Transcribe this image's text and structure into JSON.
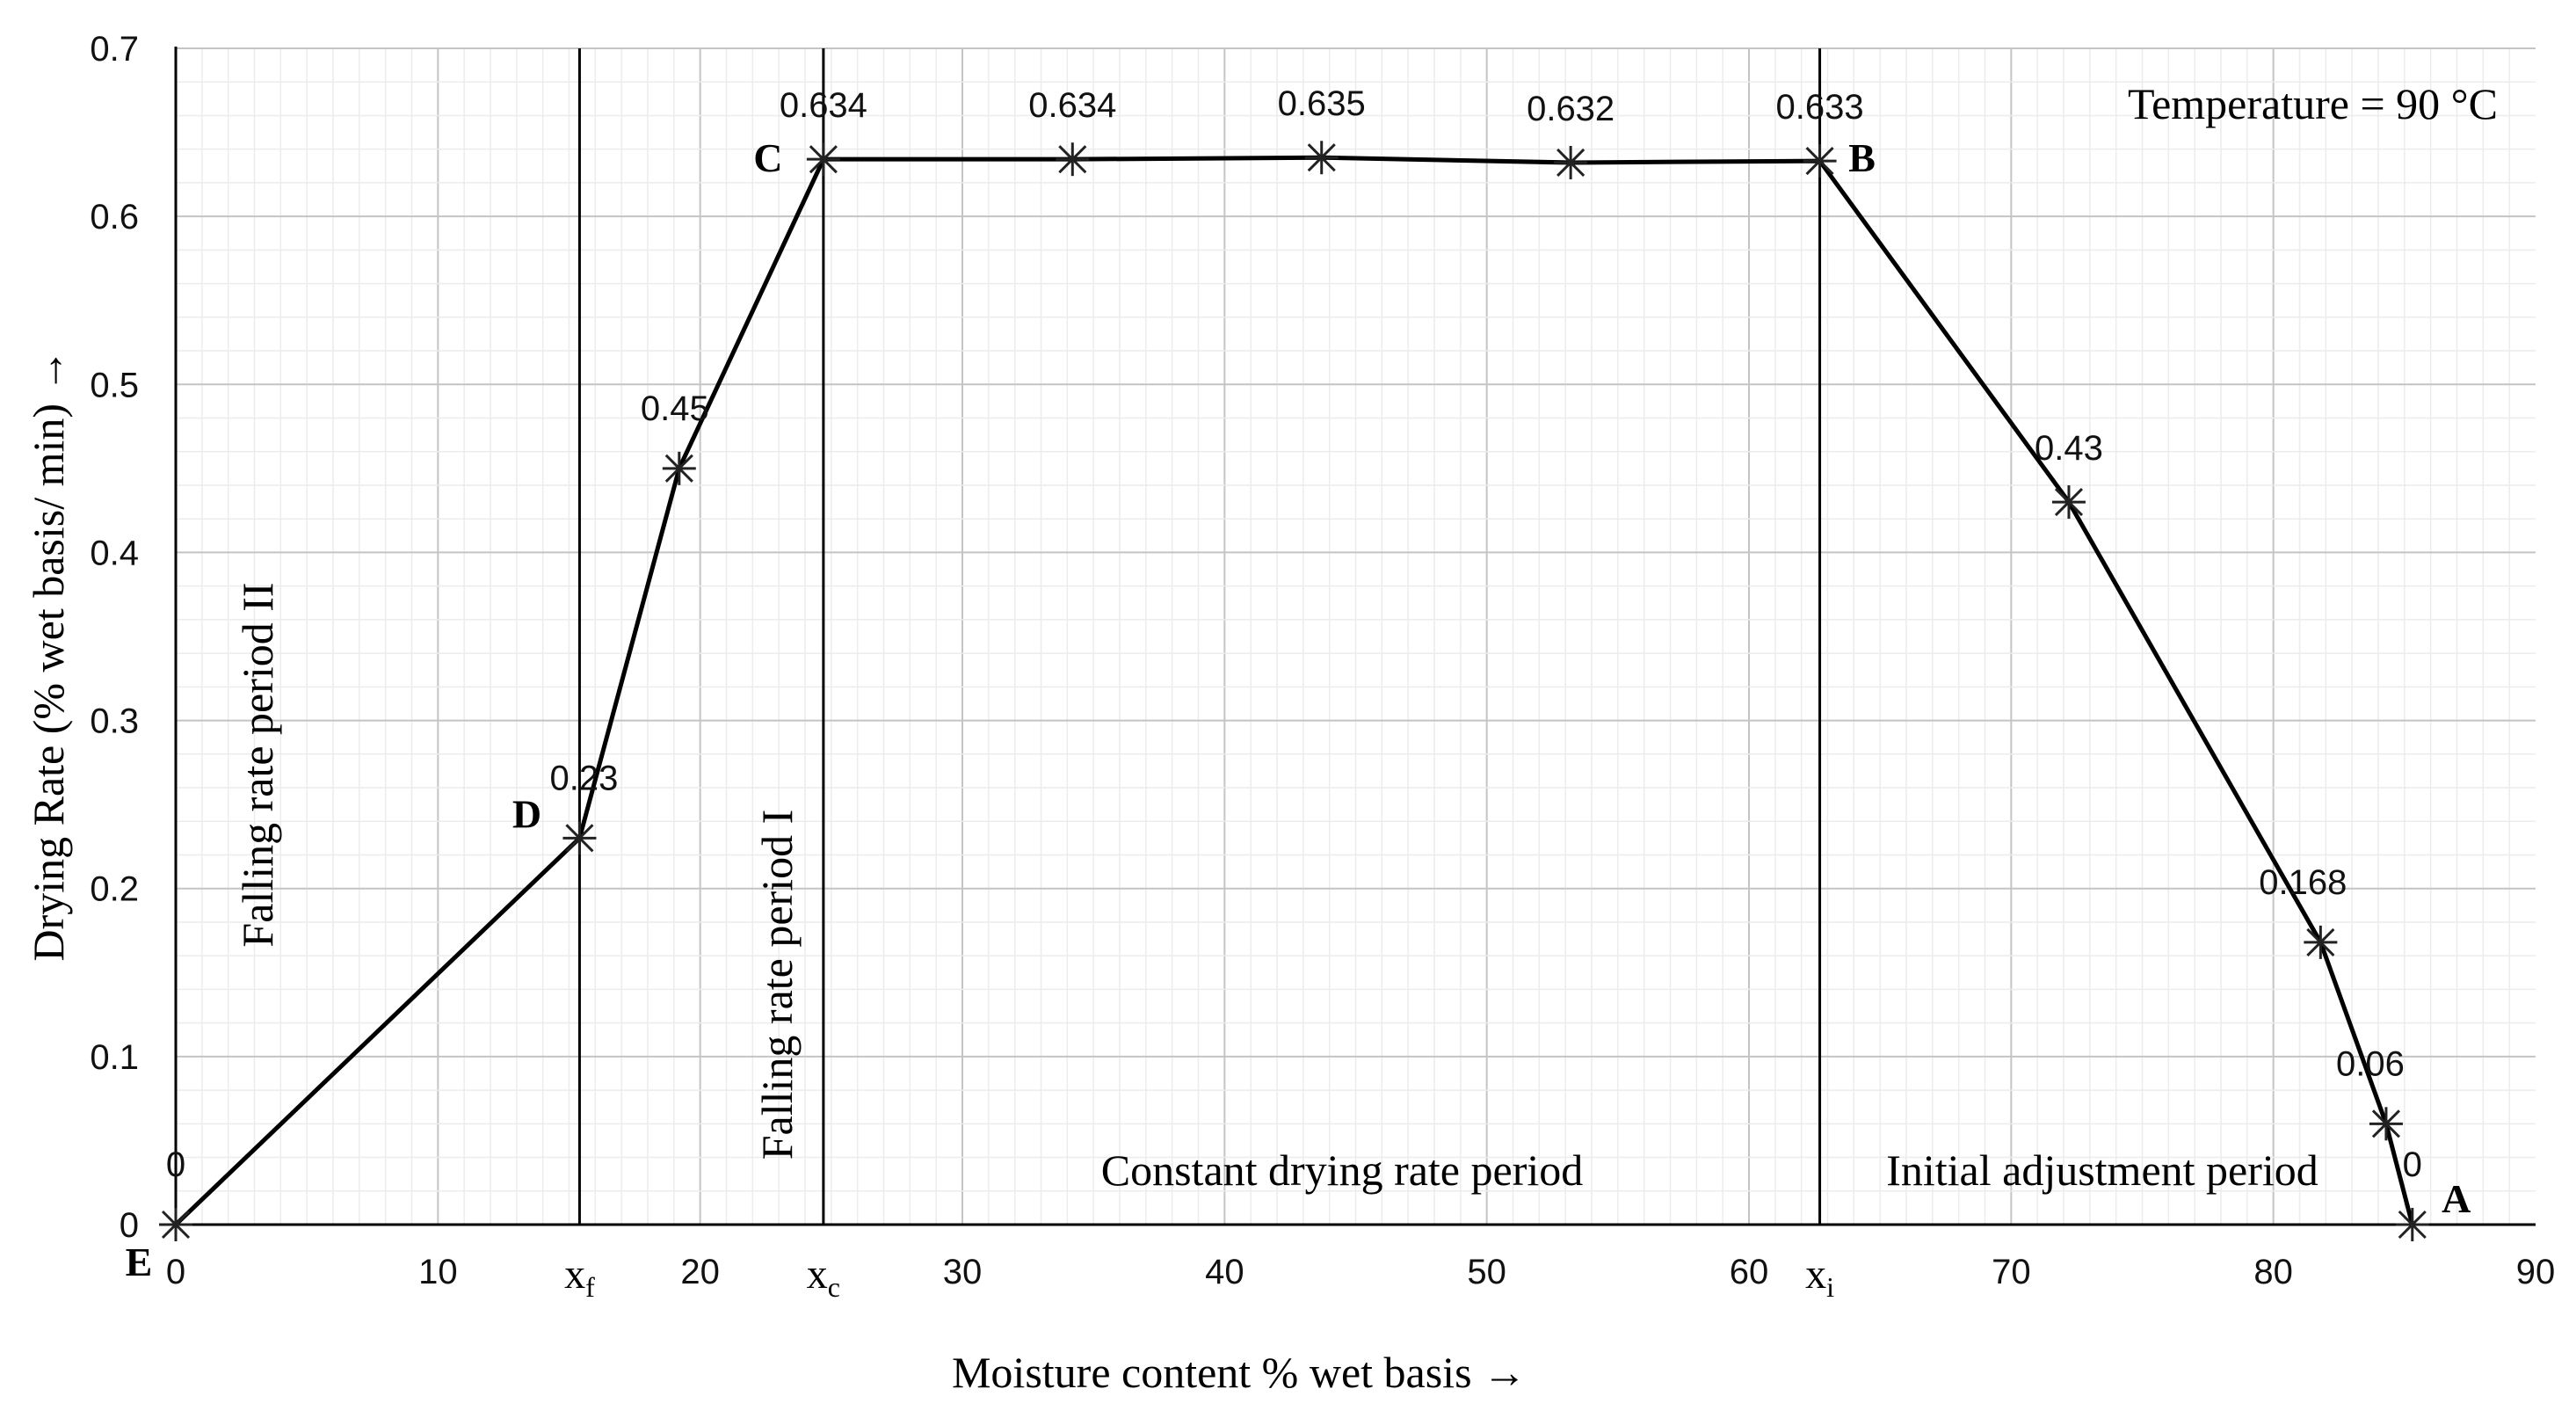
{
  "chart_data": {
    "type": "line",
    "xlabel": "Moisture content % wet basis →",
    "ylabel": "Drying Rate (% wet basis/ min) →",
    "xlim": [
      0,
      90
    ],
    "ylim": [
      0,
      0.7
    ],
    "x_ticks": [
      "0",
      "10",
      "20",
      "30",
      "40",
      "50",
      "60",
      "70",
      "80",
      "90"
    ],
    "y_ticks": [
      "0",
      "0.1",
      "0.2",
      "0.3",
      "0.4",
      "0.5",
      "0.6",
      "0.7"
    ],
    "grid": true,
    "annotation": "Temperature = 90 °C",
    "series": [
      {
        "name": "Drying rate",
        "points": [
          {
            "x": 0,
            "y": 0,
            "label": "0"
          },
          {
            "x": 15.4,
            "y": 0.23,
            "label": "0.23"
          },
          {
            "x": 19.2,
            "y": 0.45,
            "label": "0.45"
          },
          {
            "x": 24.7,
            "y": 0.634,
            "label": "0.634"
          },
          {
            "x": 34.2,
            "y": 0.634,
            "label": "0.634"
          },
          {
            "x": 43.7,
            "y": 0.635,
            "label": "0.635"
          },
          {
            "x": 53.2,
            "y": 0.632,
            "label": "0.632"
          },
          {
            "x": 62.7,
            "y": 0.633,
            "label": "0.633"
          },
          {
            "x": 72.2,
            "y": 0.43,
            "label": "0.43"
          },
          {
            "x": 81.8,
            "y": 0.168,
            "label": "0.168"
          },
          {
            "x": 84.3,
            "y": 0.06,
            "label": "0.06"
          },
          {
            "x": 85.3,
            "y": 0,
            "label": "0"
          }
        ]
      }
    ],
    "point_labels": [
      {
        "name": "A",
        "x": 85.3,
        "y": 0
      },
      {
        "name": "B",
        "x": 62.7,
        "y": 0.633
      },
      {
        "name": "C",
        "x": 24.7,
        "y": 0.634
      },
      {
        "name": "D",
        "x": 15.4,
        "y": 0.23
      },
      {
        "name": "E",
        "x": 0,
        "y": 0
      }
    ],
    "vertical_markers": [
      {
        "x": 15.4,
        "symbol": "x",
        "subscript": "f"
      },
      {
        "x": 24.7,
        "symbol": "x",
        "subscript": "c"
      },
      {
        "x": 62.7,
        "symbol": "x",
        "subscript": "i"
      }
    ],
    "period_labels": {
      "falling_rate_2": "Falling rate period II",
      "falling_rate_1": "Falling rate period I",
      "constant": "Constant drying rate period",
      "initial": "Initial adjustment period"
    }
  }
}
